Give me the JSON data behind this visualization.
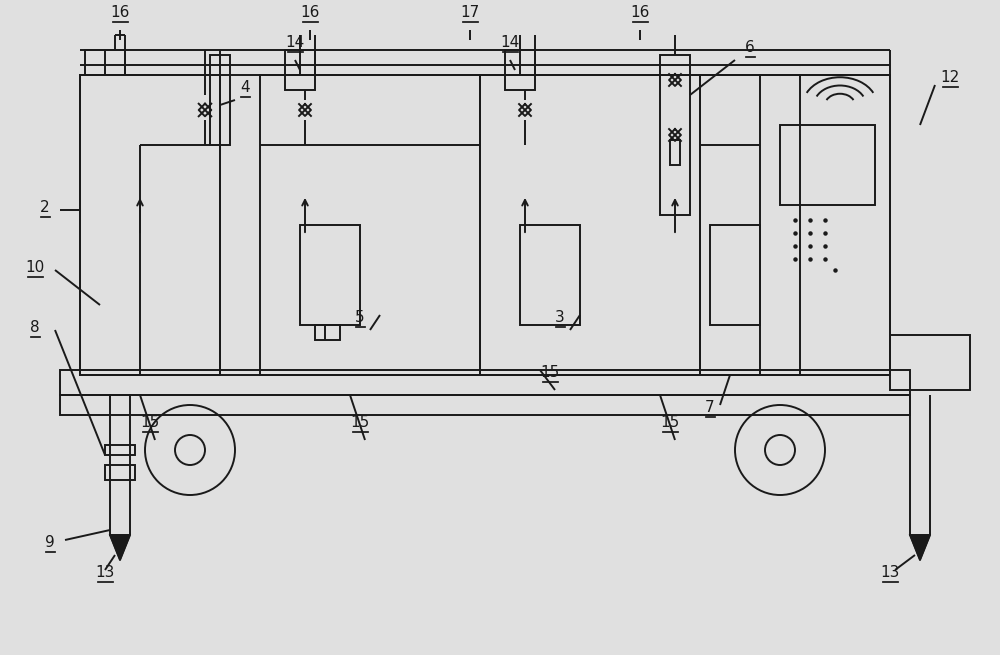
{
  "bg_color": "#e0e0e0",
  "line_color": "#1a1a1a",
  "lw": 1.4,
  "fig_w": 10.0,
  "fig_h": 6.55
}
